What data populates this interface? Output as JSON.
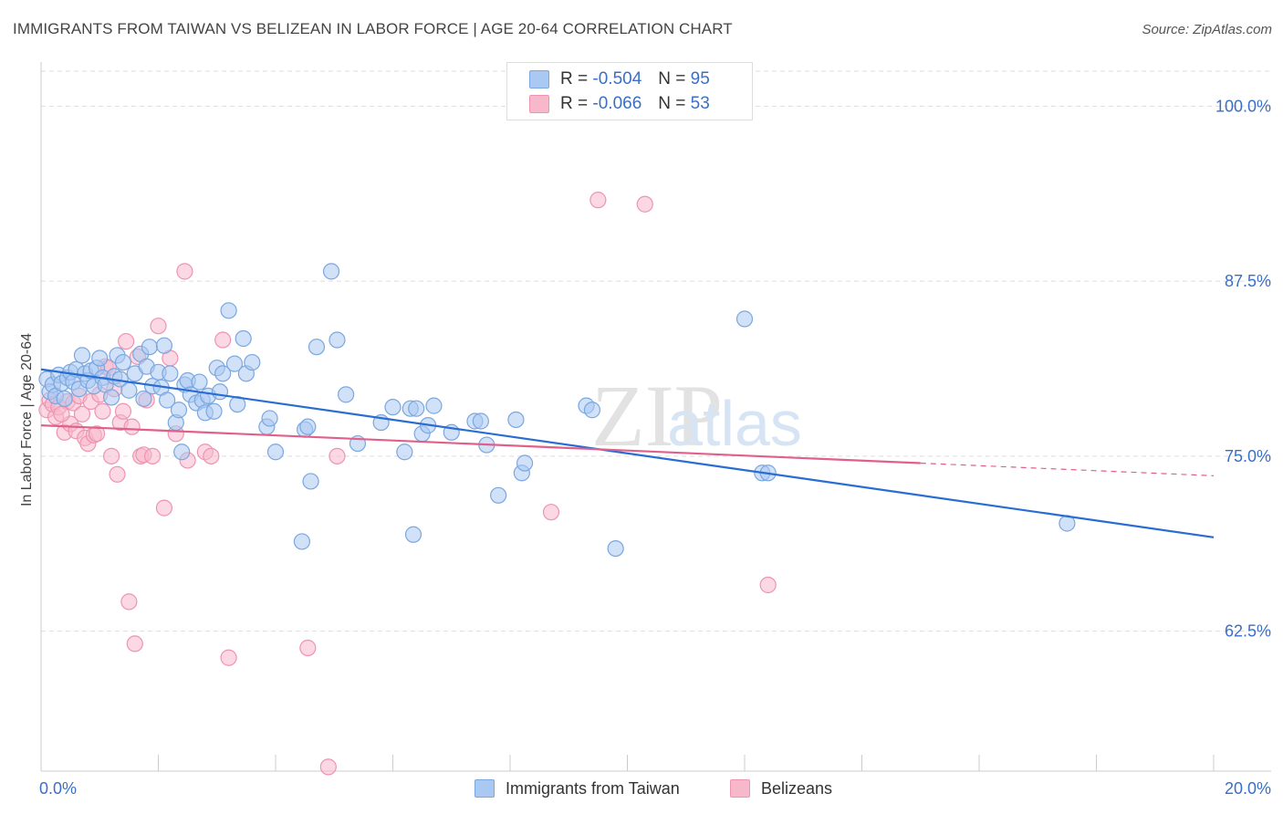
{
  "title": "IMMIGRANTS FROM TAIWAN VS BELIZEAN IN LABOR FORCE | AGE 20-64 CORRELATION CHART",
  "source": "Source: ZipAtlas.com",
  "watermark": {
    "zip": "ZIP",
    "atlas": "atlas"
  },
  "legend": {
    "r_label": "R =",
    "n_label": "N =",
    "taiwan": {
      "r": "-0.504",
      "n": "95"
    },
    "belizean": {
      "r": "-0.066",
      "n": "53"
    }
  },
  "colors": {
    "taiwan_fill": "#a9c8f2",
    "taiwan_stroke": "#7aa7e0",
    "taiwan_line": "#2a6dd2",
    "belizean_fill": "#f7b8cc",
    "belizean_stroke": "#ee94b0",
    "belizean_line": "#e0608a",
    "tick_label": "#3a6fc7",
    "grid": "#dddddd"
  },
  "chart_data": {
    "type": "scatter",
    "title": "IMMIGRANTS FROM TAIWAN VS BELIZEAN IN LABOR FORCE | AGE 20-64 CORRELATION CHART",
    "xlabel": "",
    "ylabel": "In Labor Force | Age 20-64",
    "xlim": [
      0,
      20
    ],
    "ylim": [
      52.5,
      102.5
    ],
    "x_tick_labels": [
      "0.0%",
      "20.0%"
    ],
    "y_ticks": [
      62.5,
      75.0,
      87.5,
      100.0
    ],
    "y_tick_labels": [
      "62.5%",
      "75.0%",
      "87.5%",
      "100.0%"
    ],
    "grid": true,
    "legend_position": "top-center",
    "series": [
      {
        "name": "Immigrants from Taiwan",
        "trend": {
          "x": [
            0,
            20
          ],
          "y": [
            81.2,
            69.2
          ]
        },
        "points": [
          [
            0.1,
            80.5
          ],
          [
            0.15,
            79.6
          ],
          [
            0.2,
            80.1
          ],
          [
            0.25,
            79.3
          ],
          [
            0.3,
            80.8
          ],
          [
            0.35,
            80.2
          ],
          [
            0.4,
            79.1
          ],
          [
            0.45,
            80.6
          ],
          [
            0.5,
            81.0
          ],
          [
            0.55,
            80.3
          ],
          [
            0.6,
            81.2
          ],
          [
            0.65,
            79.8
          ],
          [
            0.7,
            82.2
          ],
          [
            0.75,
            80.9
          ],
          [
            0.8,
            80.4
          ],
          [
            0.85,
            81.1
          ],
          [
            0.9,
            80.0
          ],
          [
            0.95,
            81.3
          ],
          [
            1.0,
            82.0
          ],
          [
            1.05,
            80.6
          ],
          [
            1.1,
            80.1
          ],
          [
            1.2,
            79.2
          ],
          [
            1.25,
            80.7
          ],
          [
            1.3,
            82.2
          ],
          [
            1.35,
            80.5
          ],
          [
            1.4,
            81.7
          ],
          [
            1.5,
            79.7
          ],
          [
            1.6,
            80.9
          ],
          [
            1.7,
            82.3
          ],
          [
            1.75,
            79.1
          ],
          [
            1.8,
            81.4
          ],
          [
            1.85,
            82.8
          ],
          [
            1.9,
            80.0
          ],
          [
            2.0,
            81.0
          ],
          [
            2.05,
            79.9
          ],
          [
            2.1,
            82.9
          ],
          [
            2.15,
            79.0
          ],
          [
            2.2,
            80.9
          ],
          [
            2.3,
            77.4
          ],
          [
            2.35,
            78.3
          ],
          [
            2.4,
            75.3
          ],
          [
            2.45,
            80.1
          ],
          [
            2.5,
            80.4
          ],
          [
            2.55,
            79.4
          ],
          [
            2.65,
            78.8
          ],
          [
            2.7,
            80.3
          ],
          [
            2.75,
            79.0
          ],
          [
            2.8,
            78.1
          ],
          [
            2.85,
            79.3
          ],
          [
            2.95,
            78.2
          ],
          [
            3.0,
            81.3
          ],
          [
            3.05,
            79.6
          ],
          [
            3.1,
            80.9
          ],
          [
            3.2,
            85.4
          ],
          [
            3.3,
            81.6
          ],
          [
            3.35,
            78.7
          ],
          [
            3.45,
            83.4
          ],
          [
            3.5,
            80.9
          ],
          [
            3.6,
            81.7
          ],
          [
            3.85,
            77.1
          ],
          [
            3.9,
            77.7
          ],
          [
            4.0,
            75.3
          ],
          [
            4.45,
            68.9
          ],
          [
            4.5,
            76.9
          ],
          [
            4.55,
            77.1
          ],
          [
            4.6,
            73.2
          ],
          [
            4.7,
            82.8
          ],
          [
            4.95,
            88.2
          ],
          [
            5.05,
            83.3
          ],
          [
            5.2,
            79.4
          ],
          [
            5.4,
            75.9
          ],
          [
            5.8,
            77.4
          ],
          [
            6.0,
            78.5
          ],
          [
            6.2,
            75.3
          ],
          [
            6.3,
            78.4
          ],
          [
            6.4,
            78.4
          ],
          [
            6.5,
            76.6
          ],
          [
            6.6,
            77.2
          ],
          [
            6.7,
            78.6
          ],
          [
            7.0,
            76.7
          ],
          [
            7.4,
            77.5
          ],
          [
            7.5,
            77.5
          ],
          [
            7.6,
            75.8
          ],
          [
            7.8,
            72.2
          ],
          [
            8.1,
            77.6
          ],
          [
            8.2,
            73.8
          ],
          [
            8.25,
            74.5
          ],
          [
            9.3,
            78.6
          ],
          [
            9.4,
            78.3
          ],
          [
            9.8,
            68.4
          ],
          [
            12.0,
            84.8
          ],
          [
            12.3,
            73.8
          ],
          [
            12.4,
            73.8
          ],
          [
            17.5,
            70.2
          ],
          [
            6.35,
            69.4
          ]
        ]
      },
      {
        "name": "Belizeans",
        "trend": {
          "x": [
            0,
            15
          ],
          "y": [
            77.2,
            74.5
          ]
        },
        "trend_dashed": {
          "x": [
            15,
            20
          ],
          "y": [
            74.5,
            73.6
          ]
        },
        "points": [
          [
            0.1,
            78.3
          ],
          [
            0.15,
            79.0
          ],
          [
            0.2,
            78.7
          ],
          [
            0.25,
            77.8
          ],
          [
            0.3,
            78.5
          ],
          [
            0.4,
            76.7
          ],
          [
            0.45,
            78.9
          ],
          [
            0.5,
            77.3
          ],
          [
            0.55,
            78.8
          ],
          [
            0.6,
            76.8
          ],
          [
            0.65,
            79.3
          ],
          [
            0.7,
            78.0
          ],
          [
            0.75,
            76.3
          ],
          [
            0.8,
            75.9
          ],
          [
            0.85,
            78.9
          ],
          [
            0.9,
            76.5
          ],
          [
            1.0,
            79.4
          ],
          [
            1.05,
            78.2
          ],
          [
            1.1,
            81.4
          ],
          [
            1.2,
            75.0
          ],
          [
            1.25,
            79.8
          ],
          [
            1.3,
            73.7
          ],
          [
            1.35,
            77.4
          ],
          [
            1.4,
            78.2
          ],
          [
            1.45,
            83.2
          ],
          [
            1.5,
            64.6
          ],
          [
            1.55,
            77.1
          ],
          [
            1.6,
            61.6
          ],
          [
            1.65,
            82.1
          ],
          [
            1.7,
            75.0
          ],
          [
            1.75,
            75.1
          ],
          [
            1.8,
            79.0
          ],
          [
            1.9,
            75.0
          ],
          [
            2.0,
            84.3
          ],
          [
            2.1,
            71.3
          ],
          [
            2.2,
            82.0
          ],
          [
            2.3,
            76.6
          ],
          [
            2.45,
            88.2
          ],
          [
            2.5,
            74.7
          ],
          [
            2.8,
            75.3
          ],
          [
            3.1,
            83.3
          ],
          [
            3.2,
            60.6
          ],
          [
            4.55,
            61.3
          ],
          [
            4.9,
            52.8
          ],
          [
            5.05,
            75.0
          ],
          [
            8.7,
            71.0
          ],
          [
            9.5,
            93.3
          ],
          [
            10.3,
            93.0
          ],
          [
            12.4,
            65.8
          ],
          [
            0.35,
            78.0
          ],
          [
            1.15,
            81.3
          ],
          [
            0.95,
            76.6
          ],
          [
            2.9,
            75.0
          ]
        ]
      }
    ]
  }
}
